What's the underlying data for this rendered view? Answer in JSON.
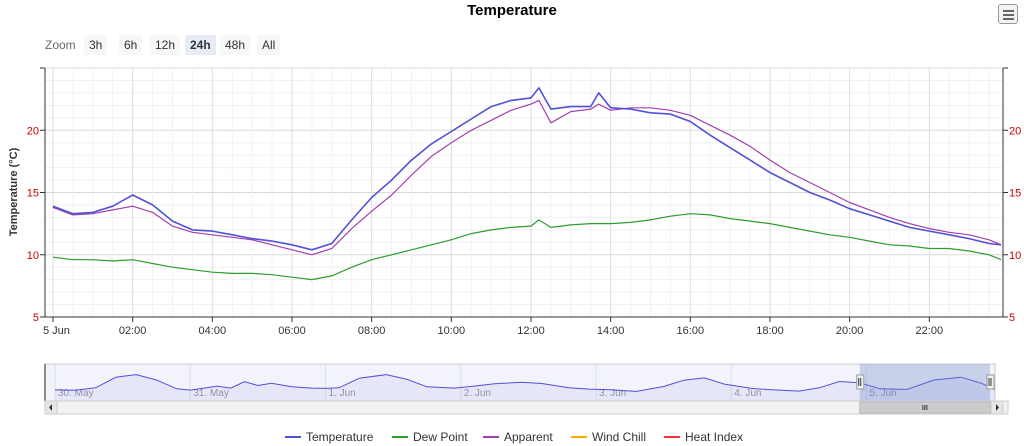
{
  "title": "Temperature",
  "zoom": {
    "label": "Zoom",
    "buttons": [
      "3h",
      "6h",
      "12h",
      "24h",
      "48h",
      "All"
    ],
    "active": "24h"
  },
  "colors": {
    "temperature": "#5151d7",
    "dew_point": "#2e9d2e",
    "apparent": "#a040b0",
    "wind_chill": "#f0b000",
    "heat_index": "#ff3030",
    "axis_ticks": "#cc0000",
    "navigator_mask": "rgba(102,133,194,0.3)"
  },
  "chart_data": [
    {
      "type": "line",
      "title": "Temperature",
      "ylabel": "Temperature (°C)",
      "xlabel": "",
      "ylim": [
        5,
        25
      ],
      "yticks": [
        5,
        10,
        15,
        20
      ],
      "xticks": [
        "5 Jun",
        "02:00",
        "04:00",
        "06:00",
        "08:00",
        "10:00",
        "12:00",
        "14:00",
        "16:00",
        "18:00",
        "20:00",
        "22:00"
      ],
      "xrange_hours": [
        0,
        23.8
      ],
      "grid": true,
      "legend_position": "bottom",
      "series": [
        {
          "name": "Temperature",
          "x": [
            0,
            0.5,
            1,
            1.5,
            2,
            2.5,
            3,
            3.5,
            4,
            4.5,
            5,
            5.5,
            6,
            6.5,
            7,
            7.5,
            8,
            8.5,
            9,
            9.5,
            10,
            10.5,
            11,
            11.5,
            12,
            12.2,
            12.5,
            13,
            13.5,
            13.7,
            14,
            14.5,
            15,
            15.5,
            16,
            16.5,
            17,
            17.5,
            18,
            18.5,
            19,
            19.5,
            20,
            20.5,
            21,
            21.5,
            22,
            22.5,
            23,
            23.5,
            23.8
          ],
          "values": [
            13.9,
            13.3,
            13.4,
            13.9,
            14.8,
            14.0,
            12.7,
            12.0,
            11.9,
            11.6,
            11.3,
            11.1,
            10.8,
            10.4,
            10.9,
            12.8,
            14.6,
            16.0,
            17.6,
            18.9,
            19.9,
            20.9,
            21.9,
            22.4,
            22.6,
            23.4,
            21.7,
            21.9,
            21.9,
            23.0,
            21.8,
            21.7,
            21.4,
            21.3,
            20.7,
            19.6,
            18.6,
            17.6,
            16.6,
            15.8,
            15.0,
            14.4,
            13.7,
            13.2,
            12.7,
            12.2,
            11.9,
            11.6,
            11.3,
            10.9,
            10.8
          ]
        },
        {
          "name": "Dew Point",
          "x": [
            0,
            0.5,
            1,
            1.5,
            2,
            2.5,
            3,
            3.5,
            4,
            4.5,
            5,
            5.5,
            6,
            6.5,
            7,
            7.5,
            8,
            8.5,
            9,
            9.5,
            10,
            10.5,
            11,
            11.5,
            12,
            12.2,
            12.5,
            13,
            13.5,
            14,
            14.5,
            15,
            15.5,
            16,
            16.5,
            17,
            17.5,
            18,
            18.5,
            19,
            19.5,
            20,
            20.5,
            21,
            21.5,
            22,
            22.5,
            23,
            23.5,
            23.8
          ],
          "values": [
            9.8,
            9.6,
            9.6,
            9.5,
            9.6,
            9.3,
            9.0,
            8.8,
            8.6,
            8.5,
            8.5,
            8.4,
            8.2,
            8.0,
            8.3,
            9.0,
            9.6,
            10.0,
            10.4,
            10.8,
            11.2,
            11.7,
            12.0,
            12.2,
            12.3,
            12.8,
            12.2,
            12.4,
            12.5,
            12.5,
            12.6,
            12.8,
            13.1,
            13.3,
            13.2,
            12.9,
            12.7,
            12.5,
            12.2,
            11.9,
            11.6,
            11.4,
            11.1,
            10.8,
            10.7,
            10.5,
            10.5,
            10.3,
            10.0,
            9.6
          ]
        },
        {
          "name": "Apparent",
          "x": [
            0,
            0.5,
            1,
            1.5,
            2,
            2.5,
            3,
            3.5,
            4,
            4.5,
            5,
            5.5,
            6,
            6.5,
            7,
            7.5,
            8,
            8.5,
            9,
            9.5,
            10,
            10.5,
            11,
            11.5,
            12,
            12.2,
            12.5,
            13,
            13.5,
            13.7,
            14,
            14.5,
            15,
            15.5,
            16,
            16.5,
            17,
            17.5,
            18,
            18.5,
            19,
            19.5,
            20,
            20.5,
            21,
            21.5,
            22,
            22.5,
            23,
            23.5,
            23.8
          ],
          "values": [
            13.8,
            13.2,
            13.3,
            13.6,
            13.9,
            13.4,
            12.3,
            11.8,
            11.6,
            11.4,
            11.2,
            10.8,
            10.4,
            10.0,
            10.5,
            12.1,
            13.5,
            14.8,
            16.4,
            17.9,
            19.0,
            20.0,
            20.8,
            21.6,
            22.1,
            22.4,
            20.6,
            21.5,
            21.7,
            22.1,
            21.6,
            21.8,
            21.8,
            21.6,
            21.2,
            20.4,
            19.6,
            18.7,
            17.6,
            16.6,
            15.8,
            15.0,
            14.2,
            13.6,
            13.0,
            12.5,
            12.1,
            11.8,
            11.6,
            11.2,
            10.8
          ]
        }
      ]
    },
    {
      "type": "area",
      "role": "navigator",
      "ylim": [
        5,
        25
      ],
      "xticks": [
        "30. May",
        "31. May",
        "1. Jun",
        "2. Jun",
        "3. Jun",
        "4. Jun",
        "5. Jun"
      ],
      "xrange_days": [
        0,
        6.95
      ],
      "selected_range_days": [
        5.95,
        6.95
      ],
      "series": [
        {
          "name": "Temperature",
          "x": [
            0,
            0.15,
            0.3,
            0.45,
            0.6,
            0.75,
            0.9,
            1.0,
            1.2,
            1.3,
            1.4,
            1.5,
            1.6,
            1.75,
            1.9,
            2.0,
            2.1,
            2.25,
            2.45,
            2.6,
            2.75,
            2.95,
            3.1,
            3.25,
            3.45,
            3.6,
            3.8,
            3.95,
            4.1,
            4.3,
            4.5,
            4.65,
            4.8,
            4.95,
            5.15,
            5.3,
            5.5,
            5.65,
            5.8,
            5.95,
            6.1,
            6.3,
            6.5,
            6.7,
            6.85,
            6.95
          ],
          "values": [
            10.5,
            10.3,
            11.8,
            18.2,
            19.8,
            16.5,
            11.2,
            10.4,
            12.8,
            11.6,
            15.5,
            13.2,
            14.5,
            12.4,
            11.6,
            11.4,
            11.8,
            17.6,
            19.8,
            17.0,
            12.4,
            11.6,
            12.8,
            14.2,
            15.2,
            14.4,
            11.8,
            11.0,
            10.6,
            9.6,
            12.6,
            16.4,
            17.8,
            14.0,
            11.4,
            10.6,
            9.8,
            11.8,
            15.6,
            14.8,
            11.2,
            10.8,
            16.5,
            18.2,
            14.5,
            10.8
          ]
        }
      ]
    }
  ],
  "legend": [
    {
      "label": "Temperature",
      "color_key": "temperature"
    },
    {
      "label": "Dew Point",
      "color_key": "dew_point"
    },
    {
      "label": "Apparent",
      "color_key": "apparent"
    },
    {
      "label": "Wind Chill",
      "color_key": "wind_chill"
    },
    {
      "label": "Heat Index",
      "color_key": "heat_index"
    }
  ]
}
